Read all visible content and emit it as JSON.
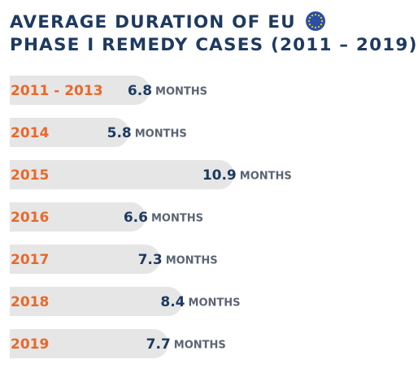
{
  "title": {
    "line1": "AVERAGE DURATION OF EU",
    "line2": "PHASE I REMEDY CASES (2011 – 2019)"
  },
  "colors": {
    "title": "#1e3a5f",
    "category": "#e8692b",
    "value": "#1e3a5f",
    "unit": "#5b6573",
    "bar": "#e6e6e6",
    "eu_blue": "#2a4fa8",
    "eu_stars": "#ffd700"
  },
  "icons": {
    "title_icon": "eu-flag-icon"
  },
  "chart_data": {
    "type": "bar",
    "orientation": "horizontal",
    "title": "AVERAGE DURATION OF EU PHASE I REMEDY CASES (2011 – 2019)",
    "categories": [
      "2011 - 2013",
      "2014",
      "2015",
      "2016",
      "2017",
      "2018",
      "2019"
    ],
    "values": [
      6.8,
      5.8,
      10.9,
      6.6,
      7.3,
      8.4,
      7.7
    ],
    "unit": "MONTHS",
    "xlim": [
      0,
      11
    ],
    "grid": false,
    "legend": "none"
  }
}
